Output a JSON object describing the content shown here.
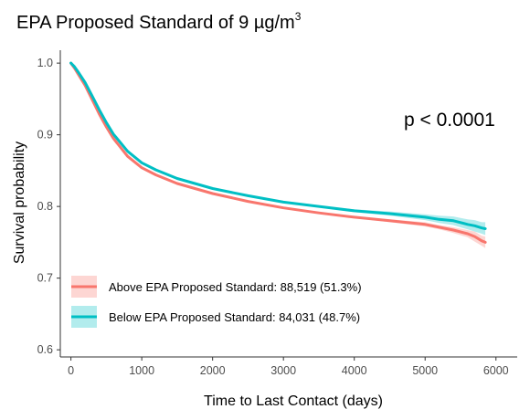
{
  "chart_data": {
    "type": "line",
    "title": {
      "main": "EPA Proposed Standard of 9 ",
      "unit": "µg/m",
      "exponent": "3"
    },
    "xlabel": "Time to Last Contact (days)",
    "ylabel": "Survival probability",
    "xlim": [
      -150,
      6300
    ],
    "ylim": [
      0.59,
      1.018
    ],
    "xticks": [
      0,
      1000,
      2000,
      3000,
      4000,
      5000,
      6000
    ],
    "yticks": [
      0.6,
      0.7,
      0.8,
      0.9,
      1.0
    ],
    "ytick_labels": [
      "0.6",
      "0.7",
      "0.8",
      "0.9",
      "1.0"
    ],
    "grid": false,
    "legend_position": "bottom-left",
    "annotation": "p < 0.0001",
    "series": [
      {
        "name": "Above EPA Proposed Standard: 88,519 (51.3%)",
        "color": "#F8766D",
        "band_color": "#F8766D",
        "x": [
          0,
          50,
          100,
          200,
          300,
          400,
          500,
          600,
          800,
          1000,
          1200,
          1500,
          2000,
          2500,
          3000,
          3500,
          4000,
          4500,
          5000,
          5200,
          5400,
          5600,
          5700,
          5800,
          5850
        ],
        "y": [
          1.0,
          0.993,
          0.985,
          0.969,
          0.949,
          0.929,
          0.911,
          0.895,
          0.87,
          0.854,
          0.844,
          0.832,
          0.818,
          0.807,
          0.798,
          0.791,
          0.785,
          0.78,
          0.775,
          0.771,
          0.767,
          0.762,
          0.758,
          0.752,
          0.75
        ],
        "lower": [
          1.0,
          0.992,
          0.984,
          0.968,
          0.948,
          0.928,
          0.91,
          0.894,
          0.869,
          0.853,
          0.843,
          0.831,
          0.817,
          0.806,
          0.797,
          0.79,
          0.784,
          0.778,
          0.772,
          0.768,
          0.763,
          0.757,
          0.751,
          0.745,
          0.742
        ],
        "upper": [
          1.0,
          0.994,
          0.986,
          0.97,
          0.95,
          0.93,
          0.912,
          0.896,
          0.871,
          0.855,
          0.845,
          0.833,
          0.819,
          0.808,
          0.799,
          0.792,
          0.786,
          0.782,
          0.778,
          0.774,
          0.771,
          0.767,
          0.765,
          0.759,
          0.758
        ]
      },
      {
        "name": "Below EPA Proposed Standard: 84,031 (48.7%)",
        "color": "#00BFC4",
        "band_color": "#00BFC4",
        "x": [
          0,
          50,
          100,
          200,
          300,
          400,
          500,
          600,
          800,
          1000,
          1200,
          1500,
          2000,
          2500,
          3000,
          3500,
          4000,
          4500,
          5000,
          5200,
          5400,
          5600,
          5700,
          5800,
          5850
        ],
        "y": [
          1.0,
          0.995,
          0.988,
          0.973,
          0.954,
          0.935,
          0.917,
          0.901,
          0.877,
          0.861,
          0.851,
          0.839,
          0.825,
          0.815,
          0.806,
          0.8,
          0.794,
          0.79,
          0.785,
          0.782,
          0.78,
          0.775,
          0.773,
          0.77,
          0.769
        ],
        "lower": [
          1.0,
          0.994,
          0.987,
          0.972,
          0.953,
          0.934,
          0.916,
          0.9,
          0.876,
          0.86,
          0.85,
          0.838,
          0.824,
          0.814,
          0.805,
          0.799,
          0.792,
          0.787,
          0.781,
          0.777,
          0.774,
          0.768,
          0.765,
          0.762,
          0.76
        ],
        "upper": [
          1.0,
          0.996,
          0.989,
          0.974,
          0.955,
          0.936,
          0.918,
          0.902,
          0.878,
          0.862,
          0.852,
          0.84,
          0.826,
          0.816,
          0.807,
          0.801,
          0.796,
          0.793,
          0.789,
          0.787,
          0.786,
          0.782,
          0.781,
          0.778,
          0.778
        ]
      }
    ]
  }
}
